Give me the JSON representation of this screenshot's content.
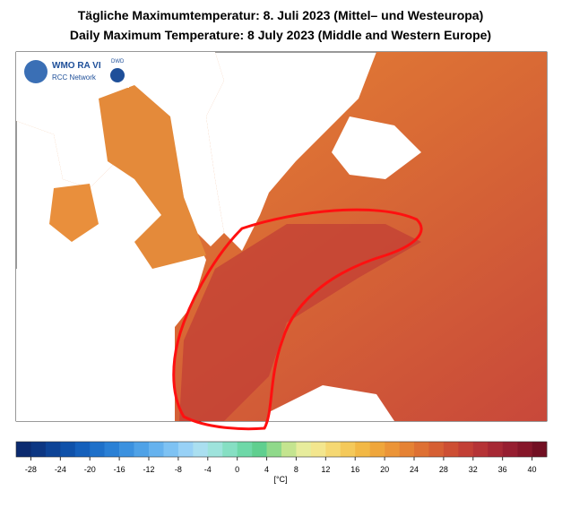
{
  "header": {
    "title_de": "Tägliche Maximumtemperatur:  8. Juli 2023  (Mittel– und Westeuropa)",
    "title_en": "Daily Maximum Temperature:  8 July 2023  (Middle and Western Europe)"
  },
  "logo": {
    "wmo": "WMO RA VI",
    "network": "RCC Network",
    "dwd": "DWD"
  },
  "colorbar": {
    "range": [
      -30,
      42
    ],
    "ticks": [
      -28,
      -24,
      -20,
      -16,
      -12,
      -8,
      -4,
      0,
      4,
      8,
      12,
      16,
      20,
      24,
      28,
      32,
      36,
      40
    ],
    "unit": "[°C]",
    "colors": [
      "#0b2a6f",
      "#0c3682",
      "#0d4396",
      "#0f51a9",
      "#1560bb",
      "#1e70c9",
      "#2a80d5",
      "#3b91df",
      "#4fa2e7",
      "#66b2ee",
      "#7ec2f3",
      "#98d1f6",
      "#aadff0",
      "#9ee3dc",
      "#86dfc3",
      "#6ed8a8",
      "#5fcf8f",
      "#8fd98a",
      "#c4e48f",
      "#e7ec9c",
      "#f3e68e",
      "#f5d873",
      "#f4c95a",
      "#f2b845",
      "#efa63b",
      "#eb9437",
      "#e58234",
      "#de7033",
      "#d65f33",
      "#cd4e33",
      "#c23f35",
      "#b53336",
      "#a62834",
      "#961e30",
      "#861629",
      "#720f22"
    ]
  }
}
